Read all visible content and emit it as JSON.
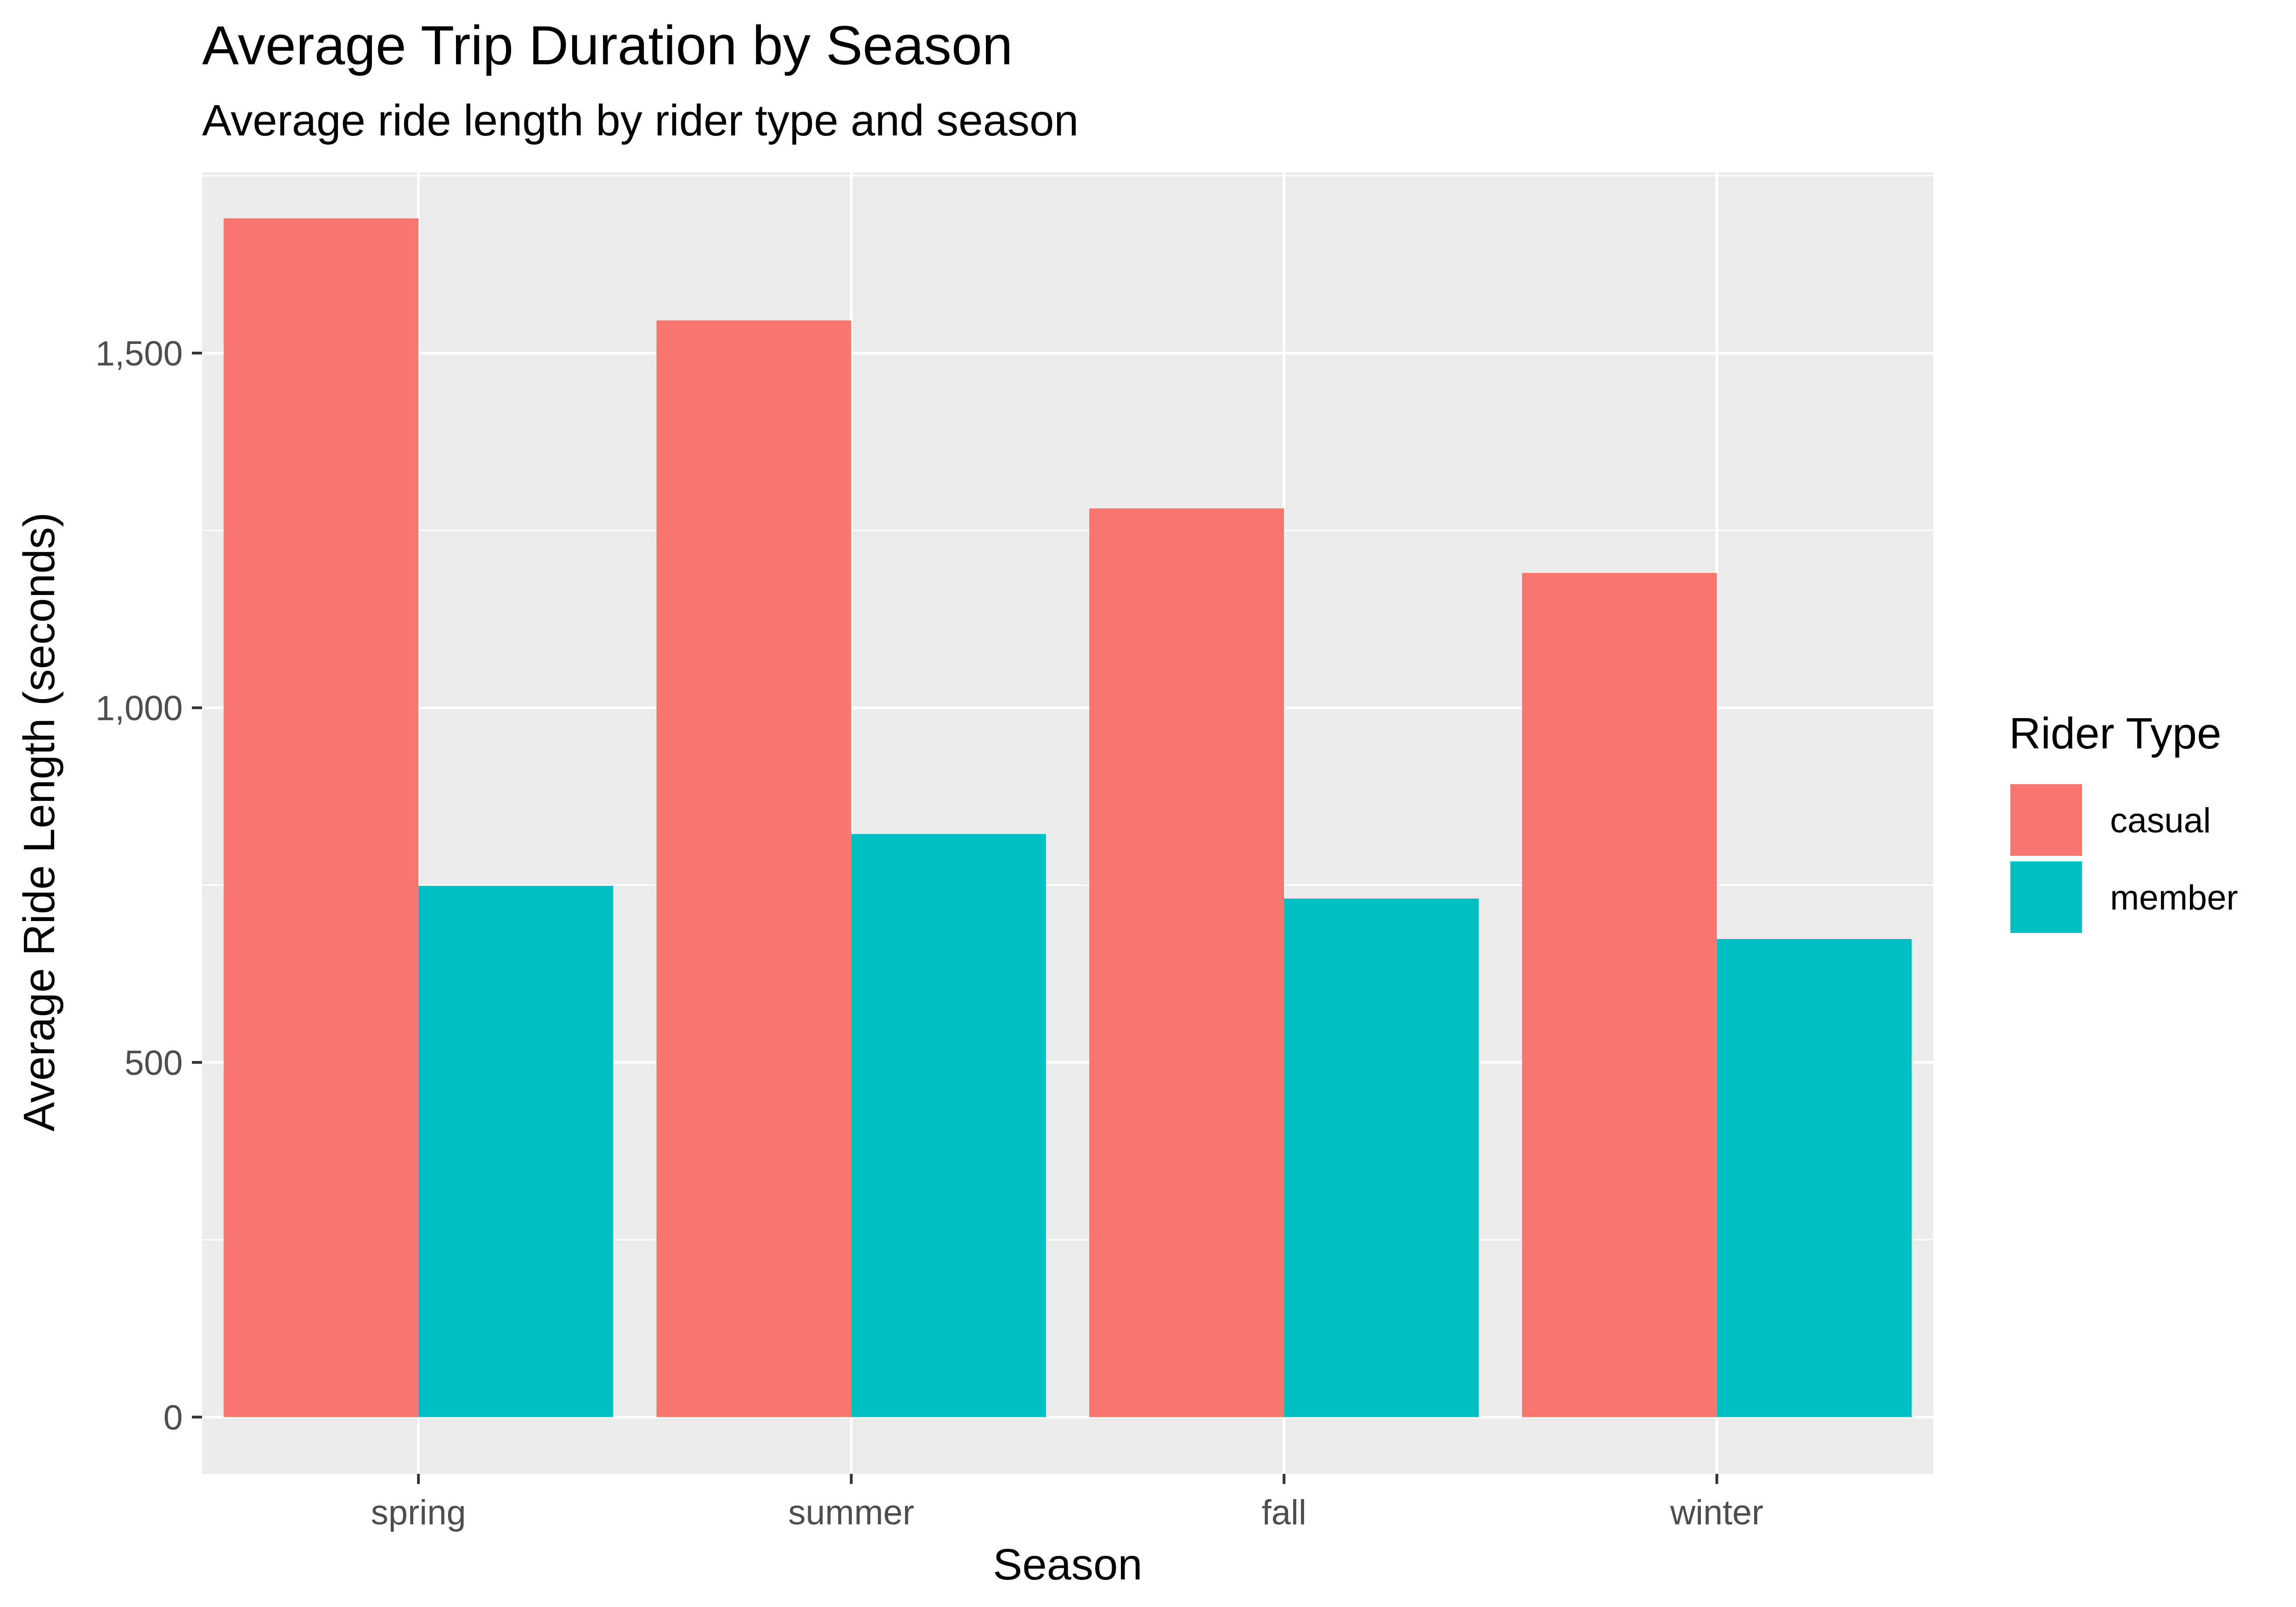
{
  "chart_data": {
    "type": "bar",
    "title": "Average Trip Duration by Season",
    "subtitle": "Average ride length by rider type and season",
    "xlabel": "Season",
    "ylabel": "Average Ride Length (seconds)",
    "categories": [
      "spring",
      "summer",
      "fall",
      "winter"
    ],
    "series": [
      {
        "name": "casual",
        "color": "#F8766D",
        "values": [
          1690,
          1546,
          1281,
          1190
        ]
      },
      {
        "name": "member",
        "color": "#00BFC4",
        "values": [
          749,
          822,
          731,
          674
        ]
      }
    ],
    "ylim": [
      -80,
      1755
    ],
    "yticks": [
      0,
      500,
      1000,
      1500
    ],
    "ytick_labels": [
      "0",
      "500",
      "1,000",
      "1,500"
    ],
    "grid": true,
    "panel_background": "#EBEBEB",
    "legend": {
      "title": "Rider Type",
      "position": "right"
    }
  }
}
